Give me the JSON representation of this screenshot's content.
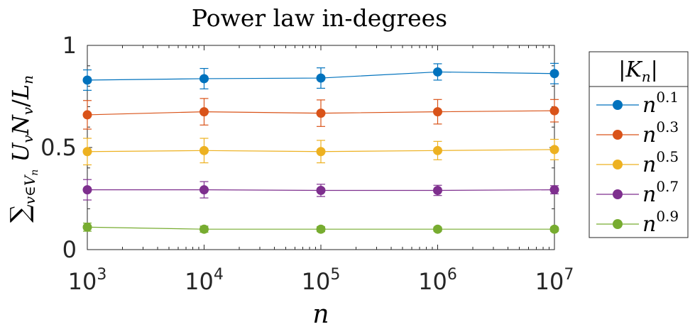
{
  "chart_data": {
    "type": "line",
    "title": "Power law in-degrees",
    "xlabel": "n",
    "ylabel": "∑v∈Vn Uv Nv / Ln",
    "x_scale": "log",
    "x": [
      1000,
      10000,
      100000,
      1000000,
      10000000
    ],
    "xlim": [
      1000,
      10000000
    ],
    "ylim": [
      0,
      1
    ],
    "xtick_labels": [
      {
        "base": "10",
        "exp": "3"
      },
      {
        "base": "10",
        "exp": "4"
      },
      {
        "base": "10",
        "exp": "5"
      },
      {
        "base": "10",
        "exp": "6"
      },
      {
        "base": "10",
        "exp": "7"
      }
    ],
    "yticks": [
      0,
      0.5,
      1
    ],
    "ytick_labels": [
      "0",
      "0.5",
      "1"
    ],
    "grid": false,
    "legend": {
      "title": "|Kn|",
      "placement": "outside-right"
    },
    "series": [
      {
        "name": "n0.1",
        "label_base": "n",
        "label_exp": "0.1",
        "color": "#0072BD",
        "values": [
          0.83,
          0.837,
          0.84,
          0.87,
          0.862
        ],
        "error": [
          0.05,
          0.05,
          0.05,
          0.04,
          0.05
        ]
      },
      {
        "name": "n0.3",
        "label_base": "n",
        "label_exp": "0.3",
        "color": "#D95319",
        "values": [
          0.66,
          0.675,
          0.668,
          0.675,
          0.68
        ],
        "error": [
          0.07,
          0.065,
          0.065,
          0.06,
          0.055
        ]
      },
      {
        "name": "n0.5",
        "label_base": "n",
        "label_exp": "0.5",
        "color": "#EDB120",
        "values": [
          0.48,
          0.485,
          0.48,
          0.485,
          0.49
        ],
        "error": [
          0.065,
          0.06,
          0.055,
          0.045,
          0.05
        ]
      },
      {
        "name": "n0.7",
        "label_base": "n",
        "label_exp": "0.7",
        "color": "#7E2F8E",
        "values": [
          0.293,
          0.293,
          0.29,
          0.29,
          0.293
        ],
        "error": [
          0.05,
          0.04,
          0.03,
          0.025,
          0.02
        ]
      },
      {
        "name": "n0.9",
        "label_base": "n",
        "label_exp": "0.9",
        "color": "#77AC30",
        "values": [
          0.11,
          0.1,
          0.1,
          0.1,
          0.1
        ],
        "error": [
          0.02,
          0.015,
          0.012,
          0.01,
          0.01
        ]
      }
    ]
  }
}
